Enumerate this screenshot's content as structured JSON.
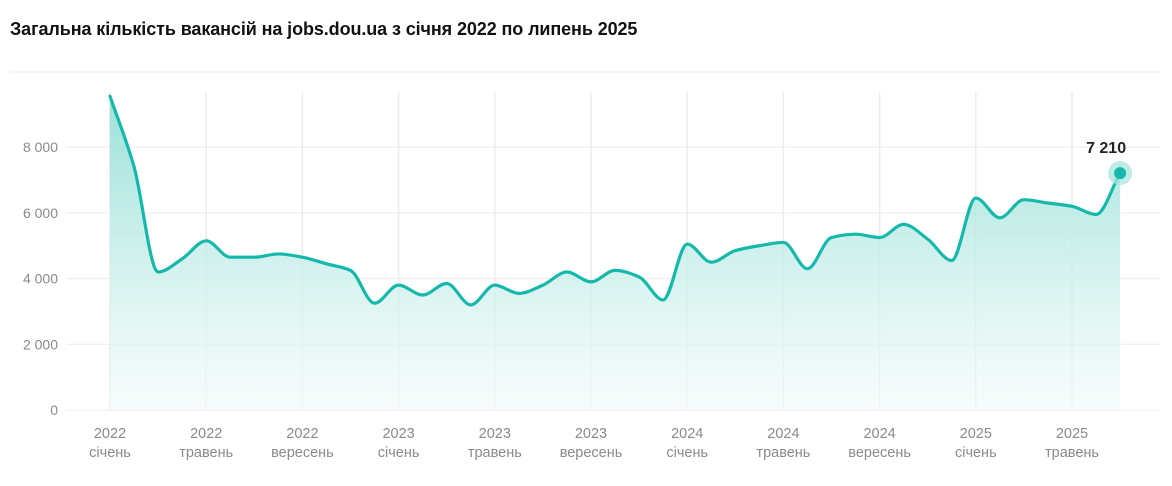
{
  "chart_data": {
    "type": "area",
    "title": "Загальна кількість вакансій на jobs.dou.ua з січня 2022 по липень 2025",
    "xlabel": "",
    "ylabel": "",
    "ylim": [
      0,
      9800
    ],
    "yticks": [
      0,
      2000,
      4000,
      6000,
      8000
    ],
    "ytick_labels": [
      "0",
      "2 000",
      "4 000",
      "6 000",
      "8 000"
    ],
    "grid": true,
    "legend": "none",
    "x_tick_labels": [
      {
        "year": "2022",
        "month": "січень"
      },
      {
        "year": "2022",
        "month": "травень"
      },
      {
        "year": "2022",
        "month": "вересень"
      },
      {
        "year": "2023",
        "month": "січень"
      },
      {
        "year": "2023",
        "month": "травень"
      },
      {
        "year": "2023",
        "month": "вересень"
      },
      {
        "year": "2024",
        "month": "січень"
      },
      {
        "year": "2024",
        "month": "травень"
      },
      {
        "year": "2024",
        "month": "вересень"
      },
      {
        "year": "2025",
        "month": "січень"
      },
      {
        "year": "2025",
        "month": "травень"
      }
    ],
    "x": [
      "2022-01",
      "2022-02",
      "2022-03",
      "2022-04",
      "2022-05",
      "2022-06",
      "2022-07",
      "2022-08",
      "2022-09",
      "2022-10",
      "2022-11",
      "2022-12",
      "2023-01",
      "2023-02",
      "2023-03",
      "2023-04",
      "2023-05",
      "2023-06",
      "2023-07",
      "2023-08",
      "2023-09",
      "2023-10",
      "2023-11",
      "2023-12",
      "2024-01",
      "2024-02",
      "2024-03",
      "2024-04",
      "2024-05",
      "2024-06",
      "2024-07",
      "2024-08",
      "2024-09",
      "2024-10",
      "2024-11",
      "2024-12",
      "2025-01",
      "2025-02",
      "2025-03",
      "2025-04",
      "2025-05",
      "2025-06",
      "2025-07"
    ],
    "series": [
      {
        "values": [
          9550,
          7400,
          4200,
          4600,
          5150,
          4650,
          4650,
          4750,
          4650,
          4450,
          4250,
          3250,
          3800,
          3500,
          3850,
          3200,
          3800,
          3550,
          3800,
          4200,
          3900,
          4250,
          4050,
          3350,
          5050,
          4500,
          4850,
          5000,
          5100,
          4300,
          5250,
          5350,
          5250,
          5650,
          5200,
          4550,
          6450,
          5850,
          6400,
          6300,
          6200,
          5950,
          7210
        ]
      }
    ],
    "highlight": {
      "value": 7210,
      "label": "7 210"
    },
    "colors": {
      "line": "#15b8aa",
      "fill_top": "#8fddd4",
      "fill_bottom": "#f2fbfa",
      "grid": "#ececec",
      "marker_halo": "#a8e4dd"
    }
  }
}
